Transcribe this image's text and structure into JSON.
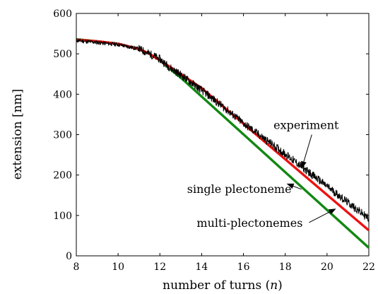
{
  "chart_data": {
    "type": "line",
    "title": "",
    "xlabel": "number of turns (n)",
    "ylabel": "extension [nm]",
    "xlim": [
      8,
      22
    ],
    "ylim": [
      0,
      600
    ],
    "xticks": [
      8,
      10,
      12,
      14,
      16,
      18,
      20,
      22
    ],
    "yticks": [
      0,
      100,
      200,
      300,
      400,
      500,
      600
    ],
    "grid": false,
    "legend": "none",
    "series": [
      {
        "name": "experiment",
        "color": "#000000",
        "noise_amplitude_nm": 10,
        "x": [
          8,
          9,
          10,
          11,
          11.5,
          12,
          12.5,
          13,
          14,
          15,
          16,
          17,
          18,
          19,
          20,
          21,
          22
        ],
        "y": [
          533,
          528,
          523,
          512,
          500,
          487,
          465,
          448,
          410,
          370,
          328,
          290,
          252,
          212,
          172,
          132,
          92
        ]
      },
      {
        "name": "single plectoneme",
        "color": "#ee1111",
        "x": [
          8,
          9,
          10,
          11,
          11.5,
          12,
          12.5,
          13,
          14,
          22
        ],
        "y": [
          535,
          531,
          525,
          512,
          500,
          484,
          467,
          450,
          415,
          63
        ]
      },
      {
        "name": "multi-plectonemes",
        "color": "#118811",
        "x": [
          8,
          9,
          10,
          11,
          11.5,
          12,
          12.5,
          13,
          22
        ],
        "y": [
          536,
          531,
          525,
          512,
          500,
          484,
          462,
          441,
          20
        ]
      }
    ],
    "annotations": [
      {
        "text": "experiment",
        "text_at": [
          19.0,
          314
        ],
        "arrow_to": [
          18.8,
          218
        ]
      },
      {
        "text": "single plectoneme",
        "text_at": [
          15.8,
          156
        ],
        "arrow_to": [
          18.1,
          178
        ]
      },
      {
        "text": "multi-plectonemes",
        "text_at": [
          16.3,
          72
        ],
        "arrow_to": [
          20.4,
          116
        ]
      }
    ]
  }
}
